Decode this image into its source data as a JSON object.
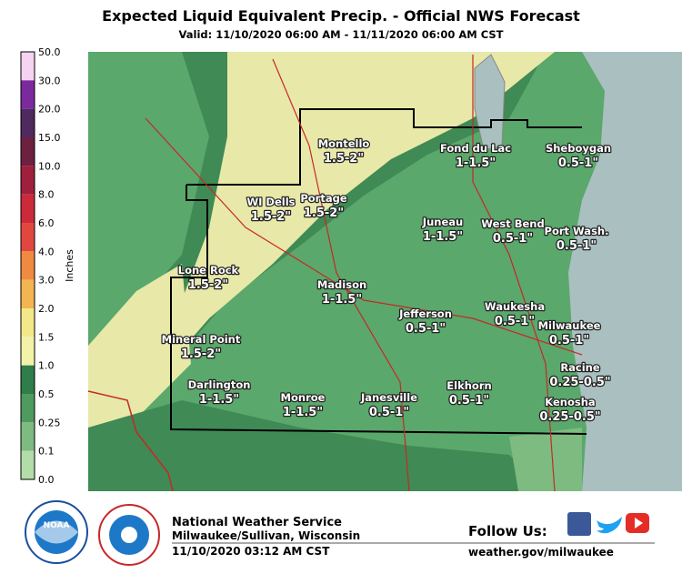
{
  "header": {
    "title": "Expected Liquid Equivalent Precip. - Official NWS Forecast",
    "subtitle": "Valid: 11/10/2020 06:00 AM - 11/11/2020 06:00 AM CST"
  },
  "legend": {
    "label": "Inches",
    "stops": [
      "50.0",
      "30.0",
      "20.0",
      "15.0",
      "10.0",
      "8.0",
      "6.0",
      "4.0",
      "3.0",
      "2.0",
      "1.5",
      "1.0",
      "0.5",
      "0.25",
      "0.1",
      "0.0"
    ]
  },
  "places": [
    {
      "name": "Montello",
      "amount": "1.5-2\""
    },
    {
      "name": "Fond du Lac",
      "amount": "1-1.5\""
    },
    {
      "name": "Sheboygan",
      "amount": "0.5-1\""
    },
    {
      "name": "WI Dells",
      "amount": "1.5-2\""
    },
    {
      "name": "Portage",
      "amount": "1.5-2\""
    },
    {
      "name": "Juneau",
      "amount": "1-1.5\""
    },
    {
      "name": "West Bend",
      "amount": "0.5-1\""
    },
    {
      "name": "Port Wash.",
      "amount": "0.5-1\""
    },
    {
      "name": "Lone Rock",
      "amount": "1.5-2\""
    },
    {
      "name": "Madison",
      "amount": "1-1.5\""
    },
    {
      "name": "Jefferson",
      "amount": "0.5-1\""
    },
    {
      "name": "Waukesha",
      "amount": "0.5-1\""
    },
    {
      "name": "Milwaukee",
      "amount": "0.5-1\""
    },
    {
      "name": "Mineral Point",
      "amount": "1.5-2\""
    },
    {
      "name": "Racine",
      "amount": "0.25-0.5\""
    },
    {
      "name": "Darlington",
      "amount": "1-1.5\""
    },
    {
      "name": "Monroe",
      "amount": "1-1.5\""
    },
    {
      "name": "Janesville",
      "amount": "0.5-1\""
    },
    {
      "name": "Elkhorn",
      "amount": "0.5-1\""
    },
    {
      "name": "Kenosha",
      "amount": "0.25-0.5\""
    }
  ],
  "footer": {
    "logo": "NOAA",
    "office": "National Weather Service",
    "location": "Milwaukee/Sullivan, Wisconsin",
    "issued": "11/10/2020 03:12 AM CST",
    "follow": "Follow Us:",
    "url": "weather.gov/milwaukee"
  }
}
